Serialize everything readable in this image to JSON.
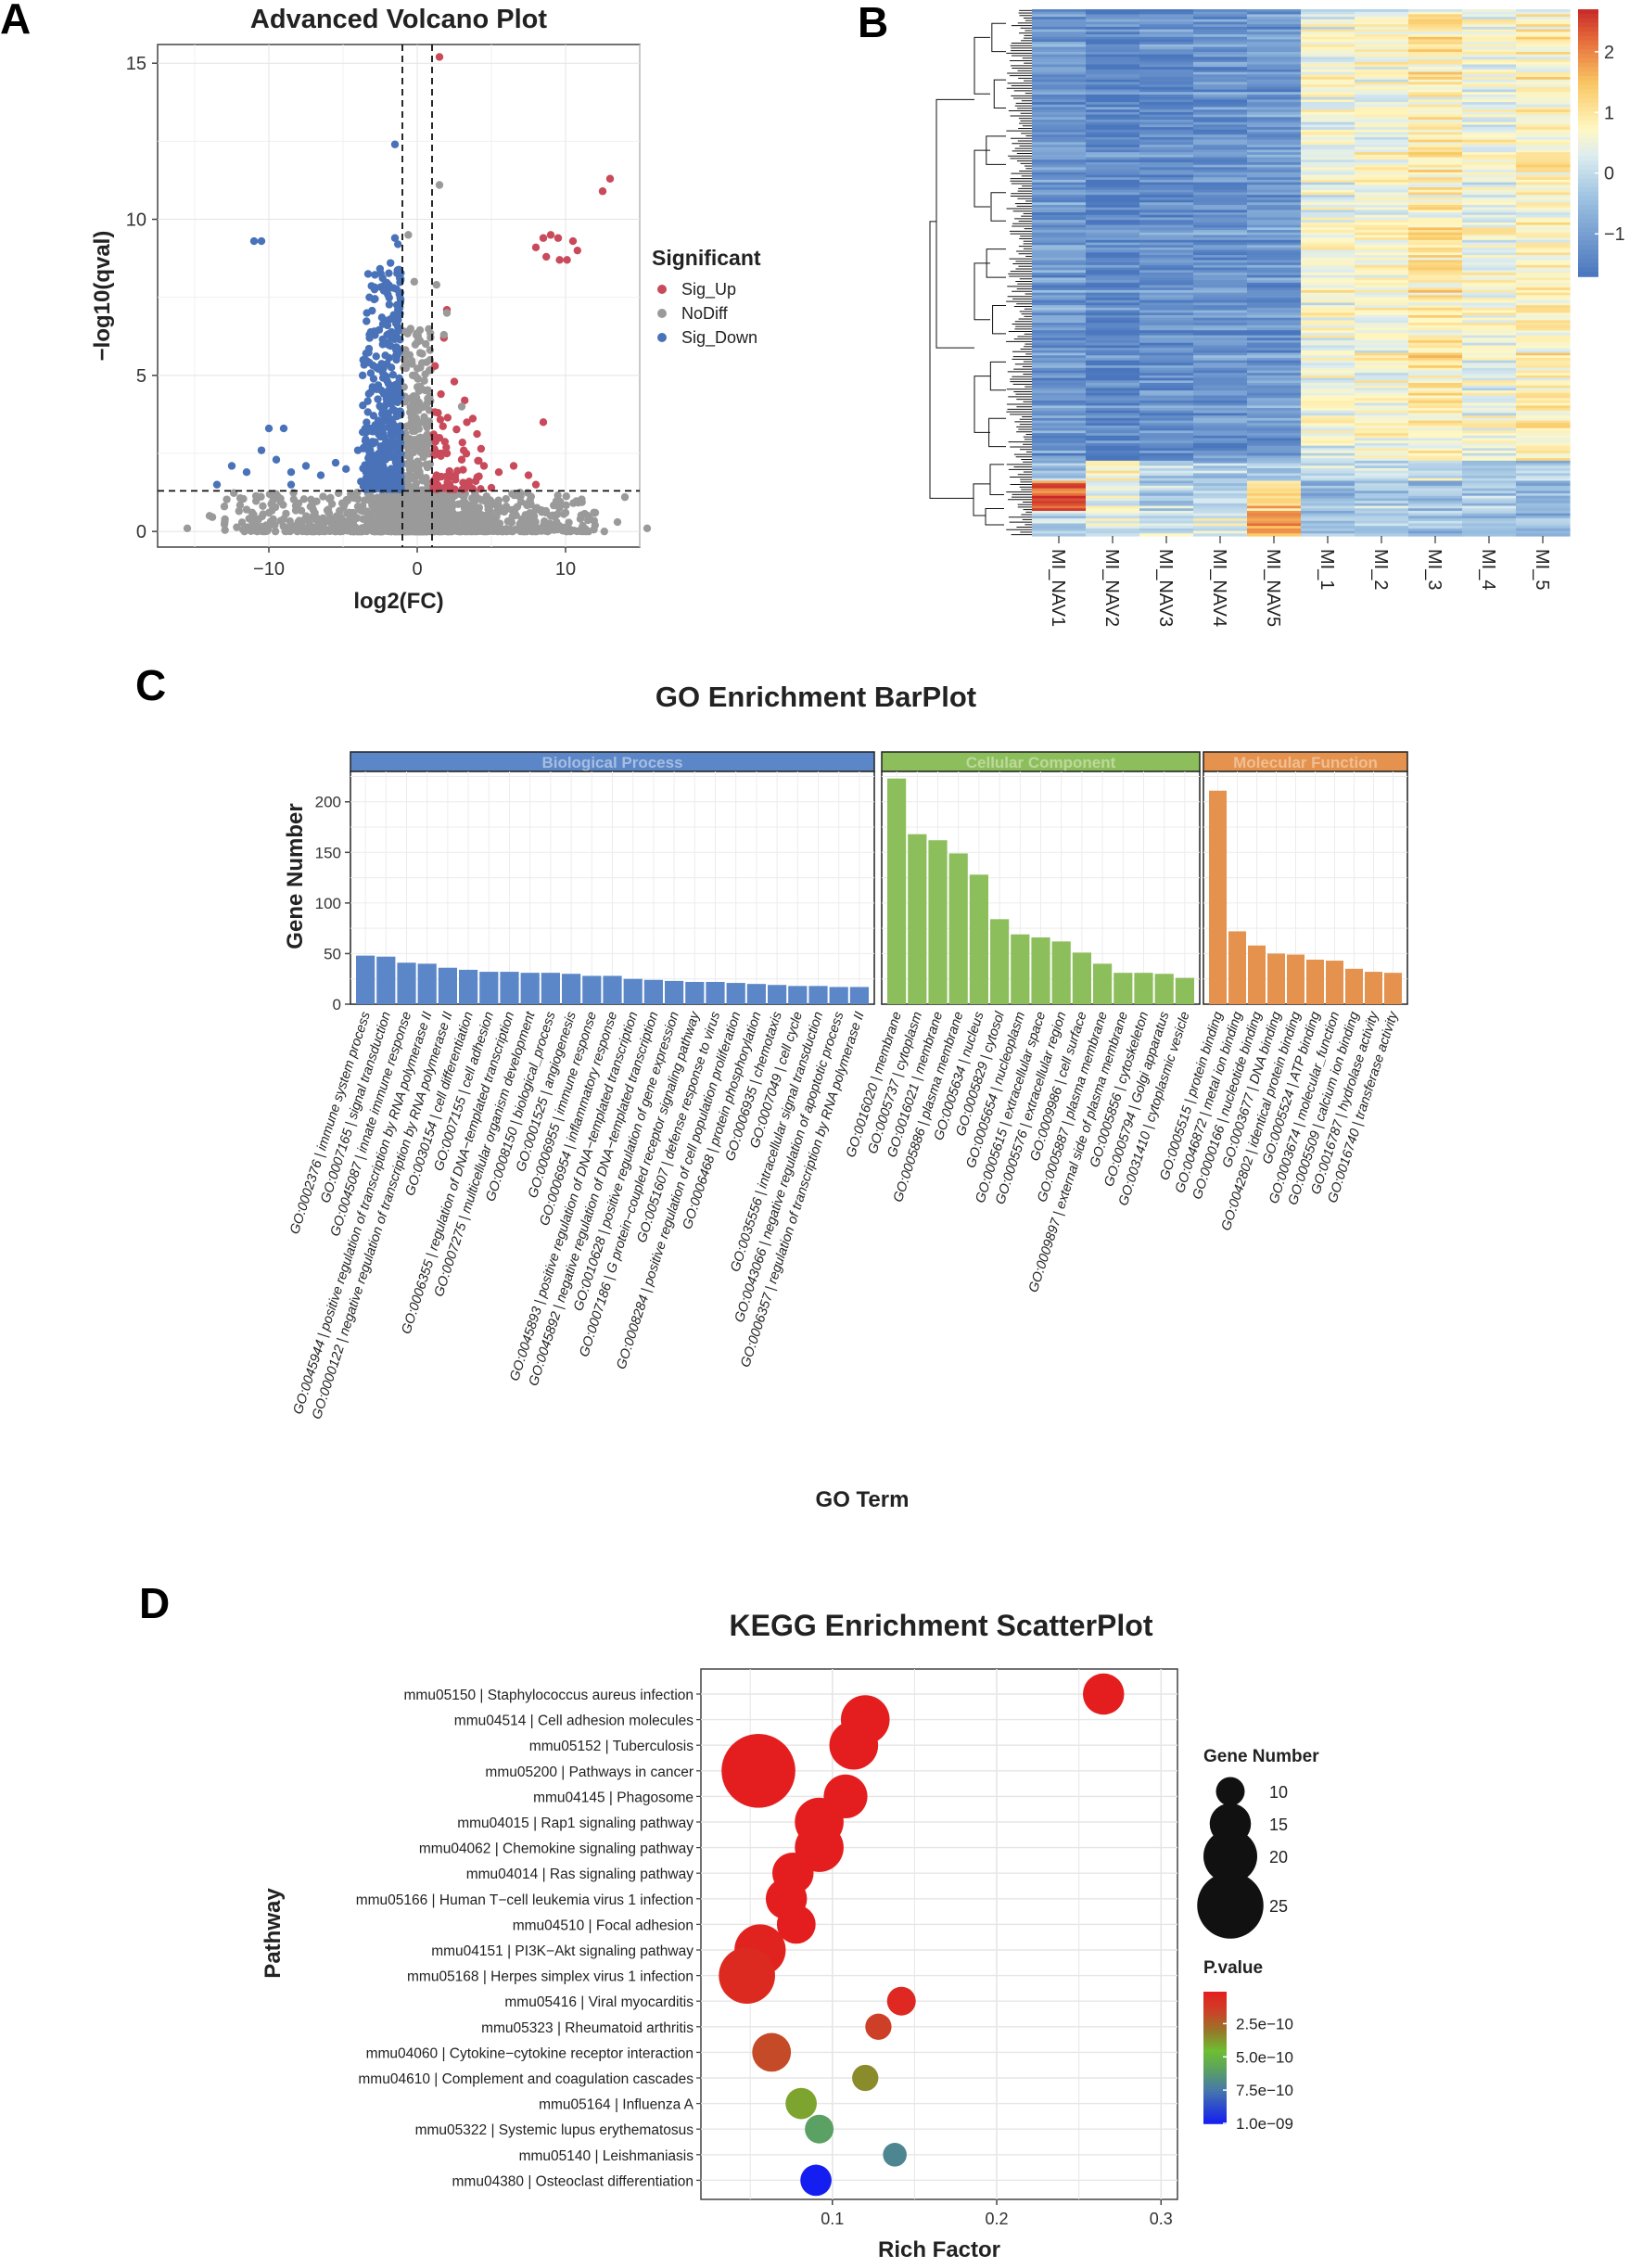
{
  "panels": {
    "a": {
      "letter": "A"
    },
    "b": {
      "letter": "B"
    },
    "c": {
      "letter": "C"
    },
    "d": {
      "letter": "D"
    }
  },
  "colors": {
    "sig_up": "#c94a5a",
    "nodiff": "#9a9a9a",
    "sig_down": "#4a72b8",
    "bp": "#5b86c8",
    "cc": "#8dbe5c",
    "mf": "#e4924e",
    "bp_light": "#a7bde0",
    "cc_light": "#bcd99a",
    "mf_light": "#f0bf92"
  },
  "chart_data": [
    {
      "type": "scatter",
      "title": "Advanced Volcano Plot",
      "xlabel": "log2(FC)",
      "ylabel": "−log10(qval)",
      "xlim": [
        -17.5,
        15
      ],
      "ylim": [
        -0.5,
        15.6
      ],
      "xticks": [
        -10,
        0,
        10
      ],
      "yticks": [
        0,
        5,
        10,
        15
      ],
      "thresholds": {
        "x": [
          -1,
          1
        ],
        "y": 1.3
      },
      "legend": {
        "title": "Significant",
        "position": "right",
        "items": [
          "Sig_Up",
          "NoDiff",
          "Sig_Down"
        ]
      },
      "series": [
        {
          "name": "Sig_Up",
          "points": [
            [
              1.5,
              15.2
            ],
            [
              13,
              11.3
            ],
            [
              12.5,
              10.9
            ],
            [
              8,
              9.1
            ],
            [
              8.5,
              9.4
            ],
            [
              9,
              9.5
            ],
            [
              9.5,
              9.4
            ],
            [
              10.5,
              9.3
            ],
            [
              10.8,
              9.0
            ],
            [
              8.7,
              8.8
            ],
            [
              9.6,
              8.7
            ],
            [
              10.1,
              8.7
            ],
            [
              2,
              7.1
            ],
            [
              1.8,
              6.2
            ],
            [
              2.5,
              4.8
            ],
            [
              3.2,
              4.2
            ],
            [
              8.5,
              3.5
            ],
            [
              1.5,
              3.0
            ],
            [
              2,
              2.5
            ],
            [
              3,
              2.3
            ],
            [
              4.5,
              2.1
            ],
            [
              5.5,
              1.9
            ],
            [
              6.5,
              2.1
            ],
            [
              7.5,
              1.8
            ],
            [
              1.3,
              1.8
            ],
            [
              2.2,
              1.5
            ],
            [
              3.5,
              1.6
            ],
            [
              5,
              1.4
            ],
            [
              8,
              1.5
            ],
            [
              1.6,
              4.4
            ],
            [
              1.2,
              5.3
            ],
            [
              1.4,
              3.8
            ]
          ]
        },
        {
          "name": "NoDiff",
          "points": [
            [
              1.5,
              11.1
            ],
            [
              1.3,
              7.9
            ],
            [
              2,
              7.0
            ],
            [
              1.8,
              6.3
            ],
            [
              3,
              4.0
            ],
            [
              -15.5,
              0.1
            ],
            [
              -14,
              0.5
            ],
            [
              -13,
              0.8
            ],
            [
              -11.5,
              0.7
            ],
            [
              -10,
              0.6
            ],
            [
              -9,
              0.4
            ],
            [
              -8,
              0.9
            ],
            [
              -7,
              0.5
            ],
            [
              -6,
              0.7
            ],
            [
              -5,
              0.3
            ],
            [
              -4,
              0.8
            ],
            [
              -3,
              0.6
            ],
            [
              -2,
              0.5
            ],
            [
              -1.5,
              1.0
            ],
            [
              0,
              0.5
            ],
            [
              1,
              0.7
            ],
            [
              2,
              0.4
            ],
            [
              3,
              0.9
            ],
            [
              4,
              0.6
            ],
            [
              5,
              0.5
            ],
            [
              6,
              0.8
            ],
            [
              7,
              0.3
            ],
            [
              8,
              0.7
            ],
            [
              9,
              0.5
            ],
            [
              10,
              0.6
            ],
            [
              11,
              0.4
            ],
            [
              12,
              0.6
            ],
            [
              13.5,
              0.3
            ],
            [
              15.5,
              0.1
            ],
            [
              -0.5,
              2.5
            ],
            [
              0.5,
              3.0
            ],
            [
              -0.3,
              5.0
            ],
            [
              0.2,
              4.0
            ],
            [
              -0.2,
              8.0
            ],
            [
              -0.6,
              9.5
            ],
            [
              14,
              1.1
            ]
          ]
        },
        {
          "name": "Sig_Down",
          "points": [
            [
              -1.5,
              12.4
            ],
            [
              -11,
              9.3
            ],
            [
              -10.5,
              9.3
            ],
            [
              -1.5,
              9.4
            ],
            [
              -1.3,
              9.2
            ],
            [
              -1.8,
              8.6
            ],
            [
              -1.6,
              7.8
            ],
            [
              -1.3,
              7.1
            ],
            [
              -2,
              6.6
            ],
            [
              -1.7,
              6.2
            ],
            [
              -1.4,
              5.5
            ],
            [
              -2.2,
              5.0
            ],
            [
              -1.6,
              4.6
            ],
            [
              -1.2,
              4.2
            ],
            [
              -2.5,
              4.0
            ],
            [
              -1.8,
              3.6
            ],
            [
              -3,
              3.2
            ],
            [
              -3.5,
              2.9
            ],
            [
              -4,
              2.6
            ],
            [
              -2.2,
              3.0
            ],
            [
              -2.8,
              2.3
            ],
            [
              -4.8,
              2.0
            ],
            [
              -5.5,
              2.2
            ],
            [
              -6.5,
              1.8
            ],
            [
              -7.5,
              2.1
            ],
            [
              -8.5,
              1.9
            ],
            [
              -9.5,
              2.3
            ],
            [
              -10.5,
              2.6
            ],
            [
              -11.5,
              1.9
            ],
            [
              -12.5,
              2.1
            ],
            [
              -13.5,
              1.5
            ],
            [
              -9,
              3.3
            ],
            [
              -10,
              3.3
            ],
            [
              -8.5,
              1.5
            ],
            [
              -1.3,
              2.0
            ],
            [
              -1.5,
              1.7
            ],
            [
              -2.5,
              1.5
            ],
            [
              -3.8,
              1.6
            ],
            [
              -1.2,
              2.5
            ],
            [
              -1.4,
              3.3
            ],
            [
              -1.9,
              2.8
            ],
            [
              -2.3,
              2.1
            ]
          ]
        }
      ]
    },
    {
      "type": "heatmap",
      "columns": [
        "MI_NAV1",
        "MI_NAV2",
        "MI_NAV3",
        "MI_NAV4",
        "MI_NAV5",
        "MI_1",
        "MI_2",
        "MI_3",
        "MI_4",
        "MI_5"
      ],
      "colorbar": {
        "ticks": [
          2,
          1,
          0,
          -1
        ],
        "range": [
          -1.7,
          2.7
        ]
      },
      "clusters": [
        {
          "rows": 180,
          "means": [
            -1.1,
            -1.4,
            -1.3,
            -1.2,
            -1.1,
            0.5,
            0.6,
            0.9,
            0.5,
            0.8
          ]
        },
        {
          "rows": 8,
          "means": [
            -0.6,
            0.8,
            -0.2,
            -0.3,
            -0.5,
            0.0,
            -0.1,
            0.1,
            -0.4,
            -0.2
          ]
        },
        {
          "rows": 12,
          "means": [
            2.3,
            0.3,
            -0.2,
            0.0,
            1.2,
            -0.5,
            -0.3,
            -0.4,
            -0.3,
            -0.5
          ]
        },
        {
          "rows": 10,
          "means": [
            -0.2,
            0.2,
            0.1,
            0.3,
            1.6,
            -0.6,
            -0.4,
            -0.5,
            -0.5,
            -0.7
          ]
        }
      ]
    },
    {
      "type": "bar",
      "title": "GO Enrichment BarPlot",
      "xlabel": "GO Term",
      "ylabel": "Gene Number",
      "ylim": [
        0,
        230
      ],
      "yticks": [
        0,
        50,
        100,
        150,
        200
      ],
      "facets": [
        {
          "name": "Biological Process",
          "categories": [
            "GO:0002376 | immune system process",
            "GO:0007165 | signal transduction",
            "GO:0045087 | innate immune response",
            "GO:0045944 | positive regulation of transcription by RNA polymerase II",
            "GO:0000122 | negative regulation of transcription by RNA polymerase II",
            "GO:0030154 | cell differentiation",
            "GO:0007155 | cell adhesion",
            "GO:0006355 | regulation of DNA−templated transcription",
            "GO:0007275 | multicellular organism development",
            "GO:0008150 | biological_process",
            "GO:0001525 | angiogenesis",
            "GO:0006955 | immune response",
            "GO:0006954 | inflammatory response",
            "GO:0045893 | positive regulation of DNA−templated transcription",
            "GO:0045892 | negative regulation of DNA−templated transcription",
            "GO:0010628 | positive regulation of gene expression",
            "GO:0007186 | G protein−coupled receptor signaling pathway",
            "GO:0051607 | defense response to virus",
            "GO:0008284 | positive regulation of cell population proliferation",
            "GO:0006468 | protein phosphorylation",
            "GO:0006935 | chemotaxis",
            "GO:0007049 | cell cycle",
            "GO:0035556 | intracellular signal transduction",
            "GO:0043066 | negative regulation of apoptotic process",
            "GO:0006357 | regulation of transcription by RNA polymerase II"
          ],
          "values": [
            48,
            47,
            41,
            40,
            36,
            34,
            32,
            32,
            31,
            31,
            30,
            28,
            28,
            25,
            24,
            23,
            22,
            22,
            21,
            20,
            19,
            18,
            18,
            17,
            17
          ]
        },
        {
          "name": "Cellular Component",
          "categories": [
            "GO:0016020 | membrane",
            "GO:0005737 | cytoplasm",
            "GO:0016021 | membrane",
            "GO:0005886 | plasma membrane",
            "GO:0005634 | nucleus",
            "GO:0005829 | cytosol",
            "GO:0005654 | nucleoplasm",
            "GO:0005615 | extracellular space",
            "GO:0005576 | extracellular region",
            "GO:0009986 | cell surface",
            "GO:0005887 | plasma membrane",
            "GO:0009897 | external side of plasma membrane",
            "GO:0005856 | cytoskeleton",
            "GO:0005794 | Golgi apparatus",
            "GO:0031410 | cytoplasmic vesicle"
          ],
          "values": [
            223,
            168,
            162,
            149,
            128,
            84,
            69,
            66,
            62,
            51,
            40,
            31,
            31,
            30,
            26
          ]
        },
        {
          "name": "Molecular Function",
          "categories": [
            "GO:0005515 | protein binding",
            "GO:0046872 | metal ion binding",
            "GO:0000166 | nucleotide binding",
            "GO:0003677 | DNA binding",
            "GO:0042802 | identical protein binding",
            "GO:0005524 | ATP binding",
            "GO:0003674 | molecular_function",
            "GO:0005509 | calcium ion binding",
            "GO:0016787 | hydrolase activity",
            "GO:0016740 | transferase activity"
          ],
          "values": [
            211,
            72,
            58,
            50,
            49,
            44,
            43,
            35,
            32,
            31
          ]
        }
      ]
    },
    {
      "type": "scatter",
      "title": "KEGG Enrichment ScatterPlot",
      "xlabel": "Rich Factor",
      "ylabel": "Pathway",
      "xlim": [
        0.02,
        0.31
      ],
      "xticks": [
        0.1,
        0.2,
        0.3
      ],
      "legend": {
        "size_title": "Gene Number",
        "size_values": [
          10,
          15,
          20,
          25
        ],
        "color_title": "P.value",
        "color_ticks": [
          "2.5e−10",
          "5.0e−10",
          "7.5e−10",
          "1.0e−09"
        ],
        "position": "right"
      },
      "pathways": [
        "mmu05150 | Staphylococcus aureus infection",
        "mmu04514 | Cell adhesion molecules",
        "mmu05152 | Tuberculosis",
        "mmu05200 | Pathways in cancer",
        "mmu04145 | Phagosome",
        "mmu04015 | Rap1 signaling pathway",
        "mmu04062 | Chemokine signaling pathway",
        "mmu04014 | Ras signaling pathway",
        "mmu05166 | Human T−cell leukemia virus 1 infection",
        "mmu04510 | Focal adhesion",
        "mmu04151 | PI3K−Akt signaling pathway",
        "mmu05168 | Herpes simplex virus 1 infection",
        "mmu05416 | Viral myocarditis",
        "mmu05323 | Rheumatoid arthritis",
        "mmu04060 | Cytokine−cytokine receptor interaction",
        "mmu04610 | Complement and coagulation cascades",
        "mmu05164 | Influenza A",
        "mmu05322 | Systemic lupus erythematosus",
        "mmu05140 | Leishmaniasis",
        "mmu04380 | Osteoclast differentiation"
      ],
      "x": [
        0.265,
        0.12,
        0.113,
        0.055,
        0.108,
        0.092,
        0.092,
        0.076,
        0.072,
        0.078,
        0.056,
        0.048,
        0.142,
        0.128,
        0.063,
        0.12,
        0.081,
        0.092,
        0.138,
        0.09
      ],
      "gene_number": [
        15,
        18,
        18,
        28,
        16,
        18,
        18,
        15,
        15,
        14,
        19,
        21,
        10,
        9,
        14,
        9,
        11,
        10,
        8,
        11
      ],
      "pvalue": [
        1e-11,
        1e-11,
        1e-11,
        1e-11,
        1e-11,
        1e-11,
        1e-11,
        1e-11,
        1e-11,
        1e-11,
        3e-11,
        6e-11,
        5e-11,
        1.5e-10,
        1.8e-10,
        3.5e-10,
        4e-10,
        6e-10,
        7e-10,
        1e-09
      ]
    }
  ]
}
